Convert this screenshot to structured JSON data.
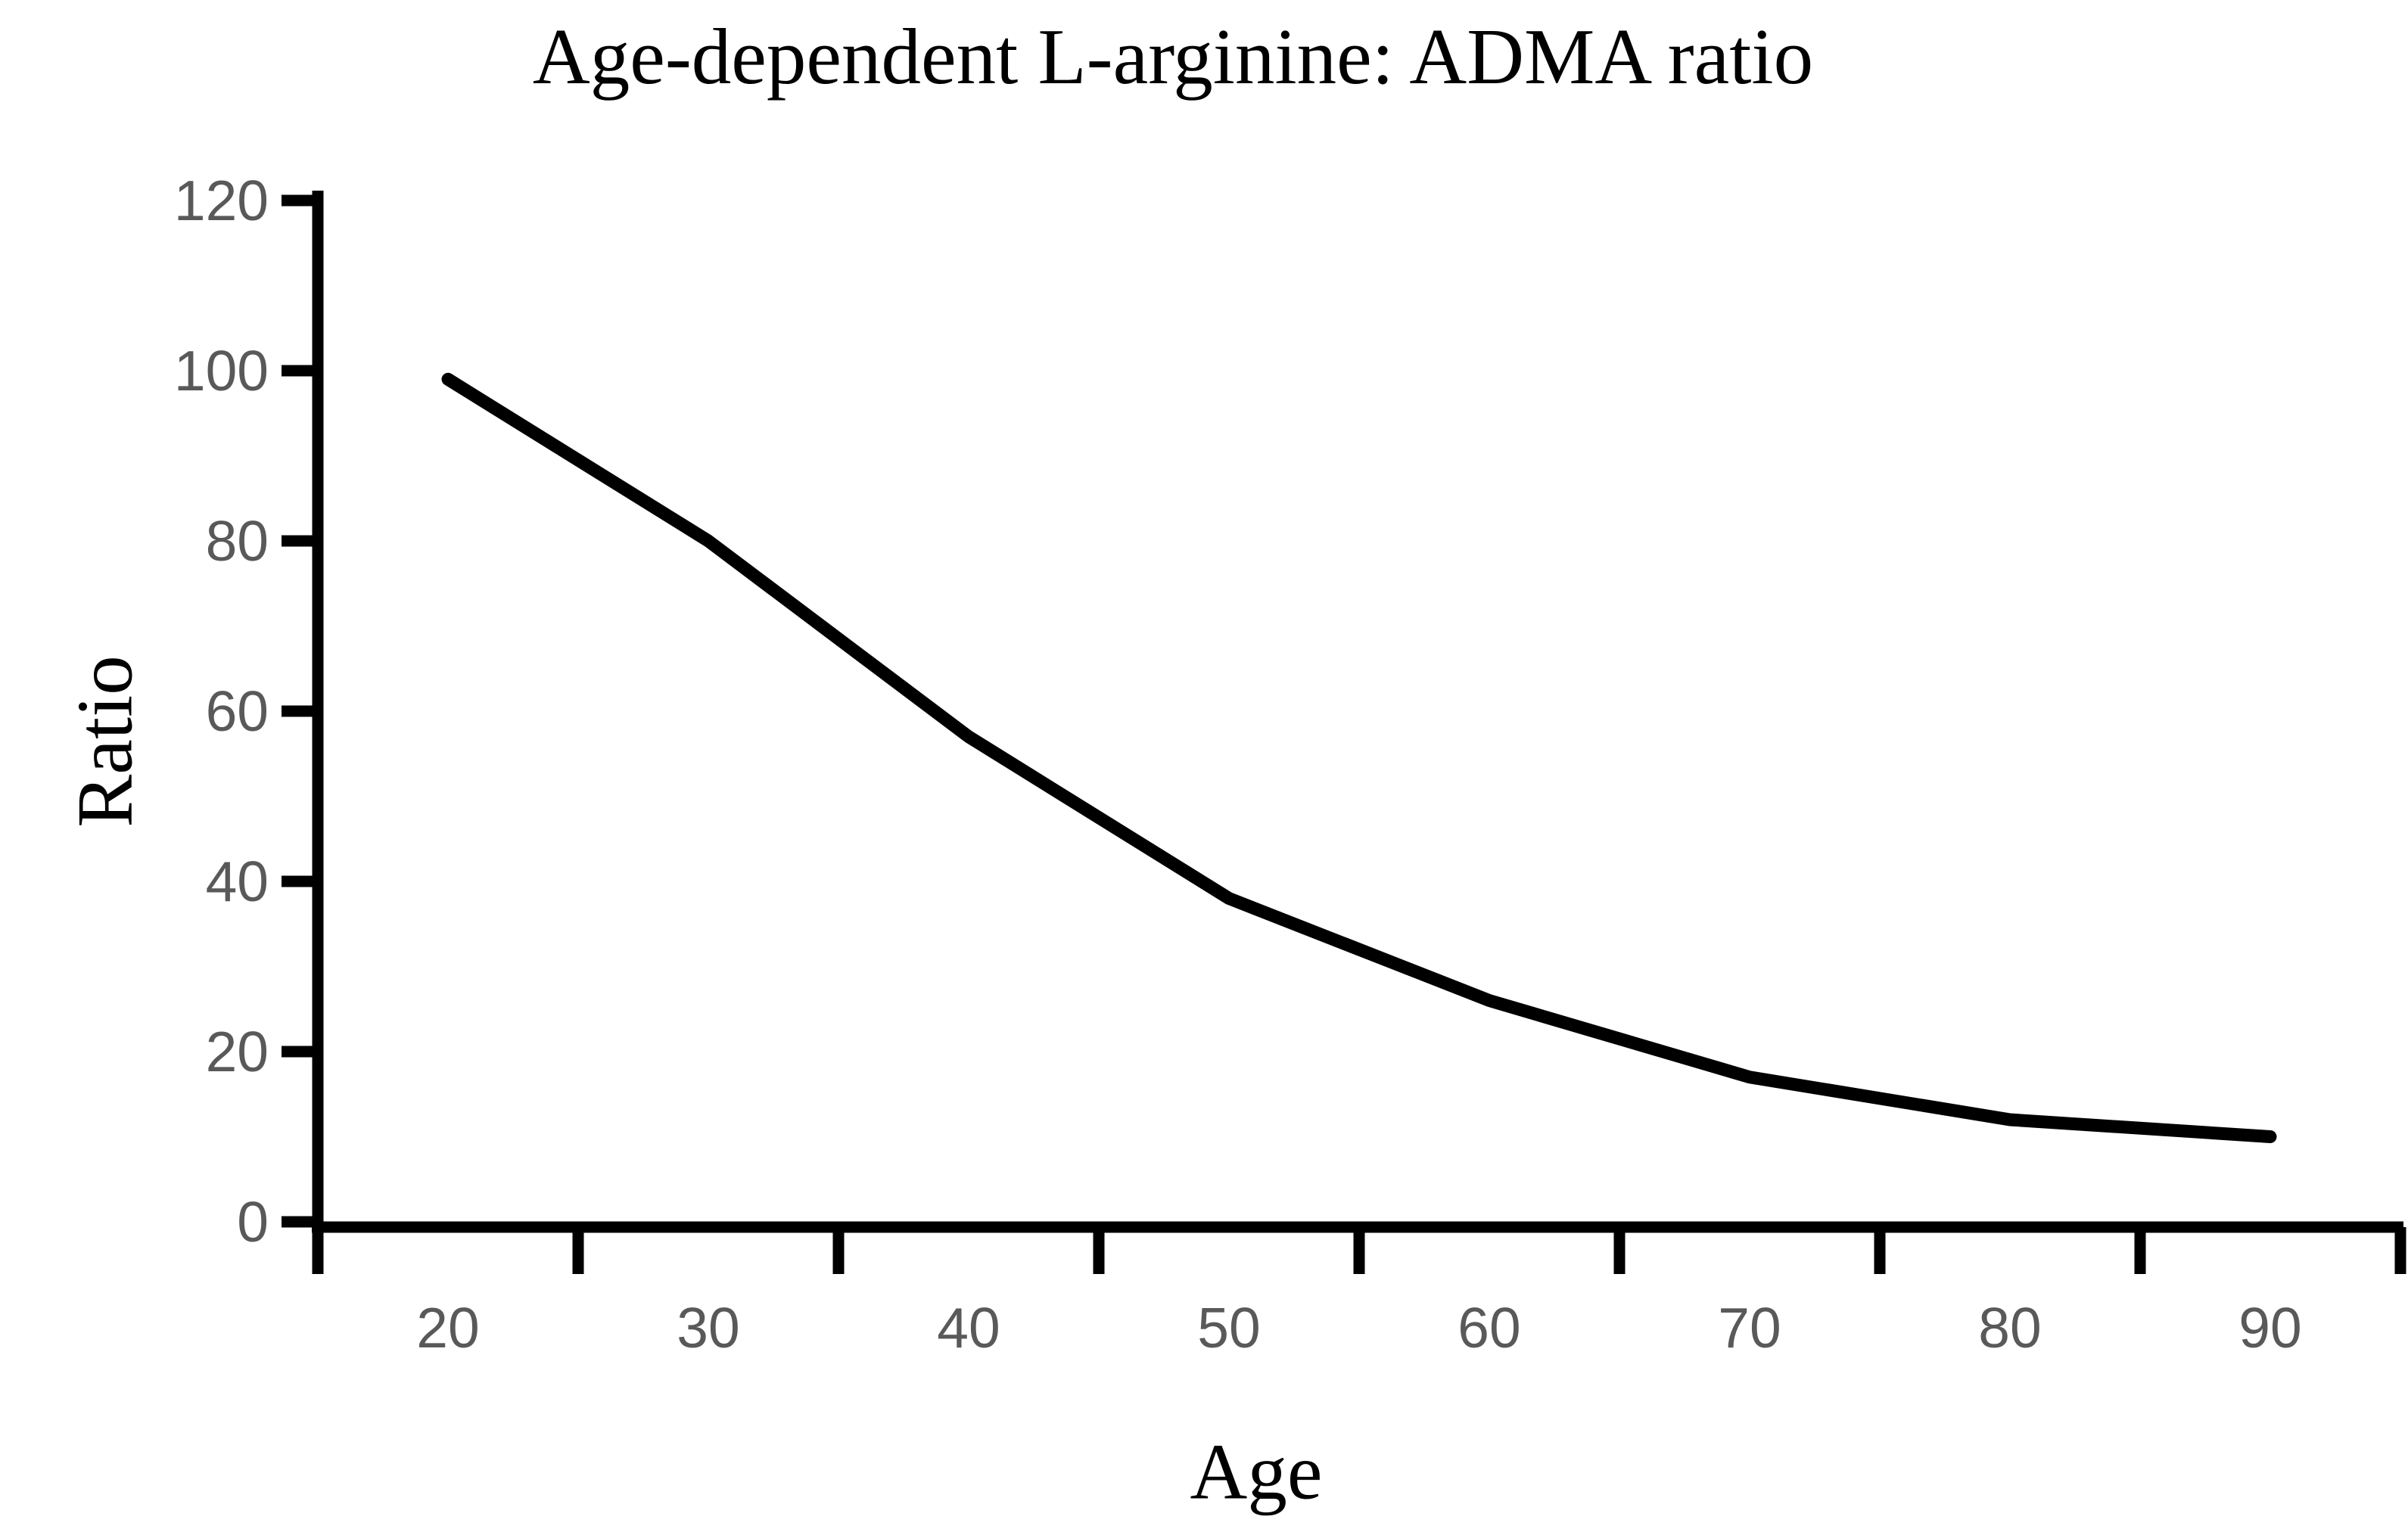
{
  "page": {
    "background_color": "#ffffff"
  },
  "chart_data": {
    "type": "line",
    "title": "Age-dependent L-arginine: ADMA ratio",
    "xlabel": "Age",
    "ylabel": "Ratio",
    "categories": [
      20,
      30,
      40,
      50,
      60,
      70,
      80,
      90
    ],
    "x_tick_labels": [
      "20",
      "30",
      "40",
      "50",
      "60",
      "70",
      "80",
      "90"
    ],
    "y_tick_labels_top_to_bottom": [
      "120",
      "100",
      "80",
      "60",
      "40",
      "20",
      "0"
    ],
    "series": [
      {
        "name": "L-arginine:ADMA ratio",
        "values": [
          99,
          80,
          57,
          38,
          26,
          17,
          12,
          10
        ]
      }
    ],
    "ylim": [
      0,
      120
    ],
    "y_tick_step": 20,
    "grid": false,
    "legend_position": "none",
    "line_color": "#000000",
    "axis_color": "#000000",
    "tick_label_color": "#595959",
    "title_color": "#000000"
  }
}
